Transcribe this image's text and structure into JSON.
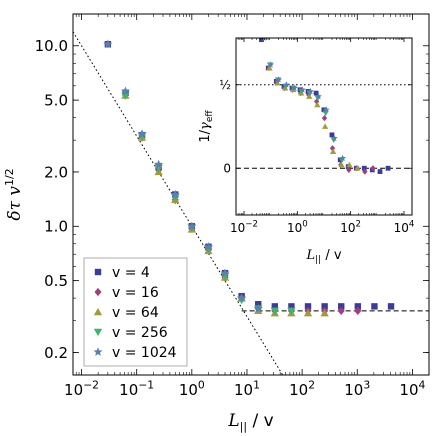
{
  "chart_data": [
    {
      "type": "scatter",
      "title": "",
      "xlabel_sym": "L",
      "xlabel_sub": "||",
      "xlabel_rest": " / v",
      "ylabel_sym": "δτ v",
      "ylabel_sup": "1/2",
      "xscale": "log",
      "yscale": "log",
      "xlim": [
        0.007,
        20000
      ],
      "ylim": [
        0.15,
        15
      ],
      "x_ticks": [
        0.01,
        0.1,
        1,
        10,
        100,
        1000,
        10000
      ],
      "x_tick_labels": [
        {
          "b": "10",
          "e": "−2"
        },
        {
          "b": "10",
          "e": "−1"
        },
        {
          "b": "10",
          "e": "0"
        },
        {
          "b": "10",
          "e": "1"
        },
        {
          "b": "10",
          "e": "2"
        },
        {
          "b": "10",
          "e": "3"
        },
        {
          "b": "10",
          "e": "4"
        }
      ],
      "y_ticks": [
        0.2,
        0.5,
        1.0,
        2.0,
        5.0,
        10.0
      ],
      "y_tick_labels": [
        "0.2",
        "0.5",
        "1.0",
        "2.0",
        "5.0",
        "10.0"
      ],
      "legend_position": "lower-left",
      "reference_lines": [
        {
          "kind": "power_law",
          "style": "dotted",
          "x_from": 0.007,
          "x_to": 60,
          "y_at_x1": 1.0,
          "slope": -0.5
        },
        {
          "kind": "horizontal",
          "style": "dashed",
          "y": 0.34,
          "x_from": 8,
          "x_to": 20000
        }
      ],
      "series": [
        {
          "name": "v = 4",
          "marker": "square",
          "color": "#3b3b9a",
          "points": [
            [
              0.03,
              10.2
            ],
            [
              0.063,
              5.5
            ],
            [
              0.125,
              3.2
            ],
            [
              0.25,
              2.15
            ],
            [
              0.5,
              1.5
            ],
            [
              1,
              1.0
            ],
            [
              2,
              0.77
            ],
            [
              4,
              0.55
            ],
            [
              8,
              0.41
            ],
            [
              16,
              0.37
            ],
            [
              32,
              0.36
            ],
            [
              64,
              0.36
            ],
            [
              128,
              0.36
            ],
            [
              256,
              0.36
            ],
            [
              512,
              0.36
            ],
            [
              1024,
              0.36
            ],
            [
              2048,
              0.36
            ],
            [
              4096,
              0.36
            ]
          ]
        },
        {
          "name": "v = 16",
          "marker": "diamond",
          "color": "#a03f7b",
          "points": [
            [
              0.0625,
              5.4
            ],
            [
              0.125,
              3.1
            ],
            [
              0.25,
              2.05
            ],
            [
              0.5,
              1.4
            ],
            [
              1,
              0.97
            ],
            [
              2,
              0.74
            ],
            [
              4,
              0.52
            ],
            [
              8,
              0.4
            ],
            [
              16,
              0.35
            ],
            [
              32,
              0.34
            ],
            [
              64,
              0.34
            ],
            [
              128,
              0.34
            ],
            [
              256,
              0.34
            ],
            [
              512,
              0.34
            ],
            [
              1024,
              0.34
            ]
          ]
        },
        {
          "name": "v = 64",
          "marker": "triangle-up",
          "color": "#9d9e3a",
          "points": [
            [
              0.0625,
              5.3
            ],
            [
              0.125,
              3.1
            ],
            [
              0.25,
              2.0
            ],
            [
              0.5,
              1.4
            ],
            [
              1,
              0.96
            ],
            [
              2,
              0.73
            ],
            [
              4,
              0.52
            ],
            [
              8,
              0.4
            ],
            [
              16,
              0.34
            ],
            [
              32,
              0.33
            ],
            [
              64,
              0.33
            ],
            [
              128,
              0.33
            ],
            [
              256,
              0.33
            ]
          ]
        },
        {
          "name": "v = 256",
          "marker": "triangle-down",
          "color": "#3cb371",
          "points": [
            [
              0.0625,
              5.3
            ],
            [
              0.125,
              3.15
            ],
            [
              0.25,
              2.1
            ],
            [
              0.5,
              1.45
            ],
            [
              1,
              0.98
            ],
            [
              2,
              0.75
            ],
            [
              4,
              0.53
            ],
            [
              8,
              0.39
            ],
            [
              16,
              0.35
            ],
            [
              32,
              0.34
            ],
            [
              64,
              0.34
            ]
          ]
        },
        {
          "name": "v = 1024",
          "marker": "star",
          "color": "#5a7fb5",
          "points": [
            [
              0.03,
              10.2
            ],
            [
              0.0625,
              5.6
            ],
            [
              0.125,
              3.25
            ],
            [
              0.25,
              2.2
            ],
            [
              0.5,
              1.5
            ],
            [
              1,
              1.0
            ],
            [
              2,
              0.77
            ],
            [
              4,
              0.55
            ],
            [
              8,
              0.4
            ],
            [
              16,
              0.35
            ]
          ]
        }
      ]
    },
    {
      "type": "scatter",
      "title": "",
      "xlabel_sym": "L",
      "xlabel_sub": "||",
      "xlabel_rest": " / v",
      "ylabel_pre": "1/",
      "ylabel_sym": "γ",
      "ylabel_sub": "eff",
      "xscale": "log",
      "yscale": "linear",
      "xlim": [
        0.005,
        20000
      ],
      "ylim": [
        -0.28,
        0.78
      ],
      "x_ticks": [
        0.01,
        1,
        100,
        10000
      ],
      "x_tick_labels": [
        {
          "b": "10",
          "e": "−2"
        },
        {
          "b": "10",
          "e": "0"
        },
        {
          "b": "10",
          "e": "2"
        },
        {
          "b": "10",
          "e": "4"
        }
      ],
      "y_ticks": [
        0.5,
        0
      ],
      "y_tick_labels": [
        "½",
        "0"
      ],
      "reference_lines": [
        {
          "kind": "horizontal",
          "style": "dotted",
          "y": 0.5
        },
        {
          "kind": "horizontal",
          "style": "dashed",
          "y": 0
        }
      ],
      "series": [
        {
          "name": "v = 4",
          "marker": "square",
          "color": "#3b3b9a",
          "points": [
            [
              0.05,
              0.77
            ],
            [
              0.09,
              0.6
            ],
            [
              0.18,
              0.52
            ],
            [
              0.35,
              0.49
            ],
            [
              0.7,
              0.48
            ],
            [
              1.4,
              0.47
            ],
            [
              2.8,
              0.46
            ],
            [
              5.6,
              0.45
            ],
            [
              11,
              0.35
            ],
            [
              22,
              0.2
            ],
            [
              45,
              0.05
            ],
            [
              90,
              0.01
            ],
            [
              180,
              0.0
            ],
            [
              360,
              0.0
            ],
            [
              720,
              -0.01
            ],
            [
              1400,
              -0.02
            ],
            [
              2800,
              0.0
            ]
          ]
        },
        {
          "name": "v = 16",
          "marker": "diamond",
          "color": "#a03f7b",
          "points": [
            [
              0.09,
              0.6
            ],
            [
              0.18,
              0.52
            ],
            [
              0.35,
              0.48
            ],
            [
              0.7,
              0.47
            ],
            [
              1.4,
              0.45
            ],
            [
              2.8,
              0.44
            ],
            [
              5.6,
              0.4
            ],
            [
              11,
              0.3
            ],
            [
              22,
              0.12
            ],
            [
              45,
              0.02
            ],
            [
              90,
              -0.01
            ],
            [
              180,
              0.0
            ],
            [
              360,
              -0.02
            ],
            [
              720,
              0.0
            ]
          ]
        },
        {
          "name": "v = 64",
          "marker": "triangle-up",
          "color": "#9d9e3a",
          "points": [
            [
              0.09,
              0.6
            ],
            [
              0.18,
              0.51
            ],
            [
              0.35,
              0.48
            ],
            [
              0.7,
              0.47
            ],
            [
              1.4,
              0.45
            ],
            [
              2.8,
              0.43
            ],
            [
              5.6,
              0.38
            ],
            [
              11,
              0.25
            ],
            [
              22,
              0.1
            ],
            [
              45,
              0.02
            ],
            [
              90,
              0.02
            ],
            [
              180,
              0.0
            ]
          ]
        },
        {
          "name": "v = 256",
          "marker": "triangle-down",
          "color": "#3cb371",
          "points": [
            [
              0.09,
              0.62
            ],
            [
              0.18,
              0.53
            ],
            [
              0.35,
              0.49
            ],
            [
              0.7,
              0.48
            ],
            [
              1.4,
              0.46
            ],
            [
              2.8,
              0.45
            ],
            [
              5.6,
              0.42
            ],
            [
              11,
              0.33
            ],
            [
              22,
              0.17
            ],
            [
              45,
              0.05
            ]
          ]
        },
        {
          "name": "v = 1024",
          "marker": "star",
          "color": "#5a7fb5",
          "points": [
            [
              0.05,
              0.78
            ],
            [
              0.09,
              0.62
            ],
            [
              0.18,
              0.53
            ],
            [
              0.35,
              0.5
            ],
            [
              0.7,
              0.48
            ],
            [
              1.4,
              0.47
            ],
            [
              2.8,
              0.46
            ],
            [
              5.6,
              0.43
            ],
            [
              11,
              0.35
            ],
            [
              22,
              0.18
            ],
            [
              45,
              0.06
            ]
          ]
        }
      ]
    }
  ]
}
